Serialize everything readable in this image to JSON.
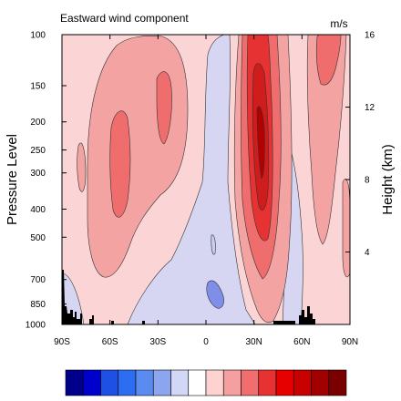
{
  "top_title": "Eastward wind component",
  "units": "m/s",
  "chart_data": {
    "type": "heatmap",
    "title": "Eastward wind component",
    "units": "m/s",
    "ylabel": "Pressure Level",
    "ylabel_right": "Height (km)",
    "x_ticks": [
      "90S",
      "60S",
      "30S",
      "0",
      "30N",
      "60N",
      "90N"
    ],
    "x_values": [
      -90,
      -60,
      -30,
      0,
      30,
      60,
      90
    ],
    "xlim": [
      -90,
      90
    ],
    "y_ticks": [
      "100",
      "150",
      "200",
      "250",
      "300",
      "400",
      "500",
      "700",
      "850",
      "1000"
    ],
    "y_values": [
      100,
      150,
      200,
      250,
      300,
      400,
      500,
      700,
      850,
      1000
    ],
    "ylim": [
      1000,
      100
    ],
    "y_scale": "log",
    "right_ticks": [
      "16",
      "12",
      "8",
      "4"
    ],
    "right_values": [
      16,
      12,
      8,
      4
    ],
    "colorbar_colors": [
      "#00008b",
      "#0000cd",
      "#1e50e6",
      "#2d6ef0",
      "#5a8cf0",
      "#8ca5f0",
      "#d2d7f5",
      "#ffffff",
      "#ffd2d2",
      "#f5a0a0",
      "#f06e6e",
      "#e63232",
      "#e60000",
      "#c80000",
      "#a00000",
      "#780000"
    ],
    "jets": [
      {
        "lat": -45,
        "p": 190,
        "u": "high",
        "color_level": "medium"
      },
      {
        "lat": -20,
        "p": 150,
        "u": "high",
        "color_level": "medium"
      },
      {
        "lat": 32,
        "p": 210,
        "u": "max",
        "color_level": "strongest"
      },
      {
        "lat": 70,
        "p": 120,
        "u": "high",
        "color_level": "medium"
      }
    ],
    "easterly_regions": [
      {
        "lat": -5,
        "p": 650,
        "level": "weak"
      },
      {
        "lat": 2,
        "p": 800,
        "level": "moderate"
      },
      {
        "lat": 1,
        "p": 130,
        "level": "weak"
      },
      {
        "lat": 45,
        "p": 300,
        "level": "weak"
      }
    ]
  }
}
